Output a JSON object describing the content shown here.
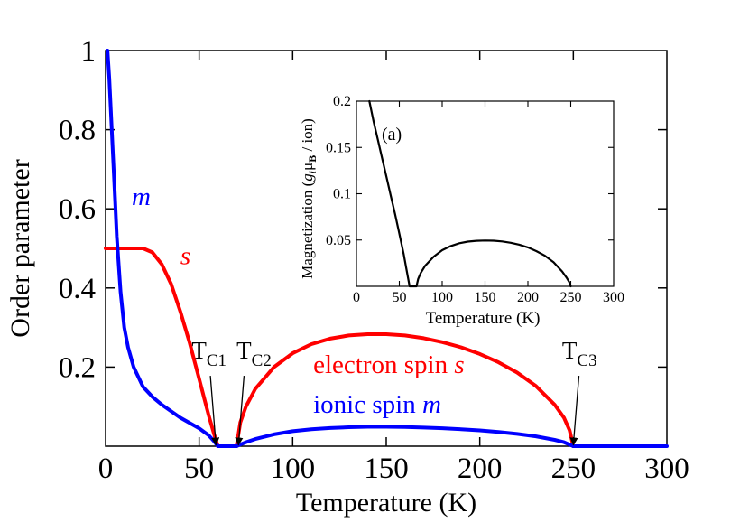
{
  "chart_data": [
    {
      "type": "line",
      "xlabel": "Temperature (K)",
      "ylabel": "Order parameter",
      "xlim": [
        0,
        300
      ],
      "ylim": [
        0,
        1
      ],
      "xticks": [
        0,
        50,
        100,
        150,
        200,
        250,
        300
      ],
      "xtick_labels": [
        "0",
        "50",
        "100",
        "150",
        "200",
        "250",
        "300"
      ],
      "yticks": [
        0.2,
        0.4,
        0.6,
        0.8,
        1
      ],
      "ytick_labels": [
        "0.2",
        "0.4",
        "0.6",
        "0.8",
        "1"
      ],
      "grid": false,
      "series": [
        {
          "name": "s",
          "color": "#ff0000",
          "x": [
            0,
            10,
            20,
            25,
            30,
            35,
            40,
            45,
            50,
            55,
            58,
            60,
            70,
            72,
            75,
            80,
            90,
            100,
            110,
            120,
            130,
            140,
            150,
            160,
            170,
            180,
            190,
            200,
            210,
            220,
            230,
            240,
            245,
            248,
            250
          ],
          "y": [
            0.5,
            0.5,
            0.5,
            0.49,
            0.46,
            0.41,
            0.34,
            0.26,
            0.17,
            0.08,
            0.03,
            0.0,
            0.0,
            0.06,
            0.1,
            0.145,
            0.2,
            0.235,
            0.258,
            0.272,
            0.28,
            0.283,
            0.283,
            0.28,
            0.273,
            0.263,
            0.25,
            0.233,
            0.212,
            0.186,
            0.152,
            0.105,
            0.072,
            0.04,
            0.0
          ]
        },
        {
          "name": "m",
          "color": "#0000ff",
          "x": [
            1,
            2,
            3,
            4,
            5,
            6,
            8,
            10,
            12,
            15,
            20,
            25,
            30,
            40,
            50,
            55,
            58,
            60,
            70,
            72,
            75,
            80,
            90,
            100,
            110,
            120,
            130,
            140,
            150,
            160,
            170,
            180,
            190,
            200,
            210,
            220,
            230,
            240,
            245,
            250,
            300
          ],
          "y": [
            1.0,
            0.93,
            0.83,
            0.73,
            0.63,
            0.53,
            0.39,
            0.3,
            0.25,
            0.2,
            0.15,
            0.125,
            0.105,
            0.072,
            0.045,
            0.028,
            0.012,
            0.0,
            0.0,
            0.004,
            0.01,
            0.018,
            0.03,
            0.038,
            0.043,
            0.046,
            0.048,
            0.049,
            0.049,
            0.0485,
            0.047,
            0.0455,
            0.043,
            0.04,
            0.036,
            0.031,
            0.025,
            0.016,
            0.01,
            0.0,
            0.0
          ]
        }
      ],
      "annotations": [
        {
          "id": "label_m",
          "text": "m",
          "color": "#0000ff",
          "x": 14,
          "y": 0.61
        },
        {
          "id": "label_s",
          "text": "s",
          "color": "#ff0000",
          "x": 40,
          "y": 0.46
        },
        {
          "id": "label_electron",
          "text": "electron spin",
          "italic_suffix": "s",
          "color": "#ff0000",
          "x": 111,
          "y": 0.185
        },
        {
          "id": "label_ionic",
          "text": "ionic spin",
          "italic_suffix": "m",
          "color": "#0000ff",
          "x": 111,
          "y": 0.085
        }
      ],
      "critical_points": [
        {
          "id": "tc1",
          "label": "T",
          "subscript": "C1",
          "text_x": 46,
          "text_y": 0.222,
          "arrow_from": [
            56,
            0.178
          ],
          "arrow_to": [
            59,
            0.003
          ]
        },
        {
          "id": "tc2",
          "label": "T",
          "subscript": "C2",
          "text_x": 70,
          "text_y": 0.222,
          "arrow_from": [
            74,
            0.178
          ],
          "arrow_to": [
            71,
            0.003
          ]
        },
        {
          "id": "tc3",
          "label": "T",
          "subscript": "C3",
          "text_x": 244,
          "text_y": 0.222,
          "arrow_from": [
            253,
            0.178
          ],
          "arrow_to": [
            250,
            0.003
          ]
        }
      ]
    },
    {
      "type": "line",
      "panel_label": "(a)",
      "xlabel": "Temperature (K)",
      "ylabel_parts": [
        "Magnetization (",
        "g",
        "i",
        "μ",
        "B",
        " / ion)"
      ],
      "xlim": [
        0,
        300
      ],
      "ylim": [
        0,
        0.2
      ],
      "xticks": [
        0,
        50,
        100,
        150,
        200,
        250,
        300
      ],
      "xtick_labels": [
        "0",
        "50",
        "100",
        "150",
        "200",
        "250",
        "300"
      ],
      "yticks": [
        0.05,
        0.1,
        0.15,
        0.2
      ],
      "ytick_labels": [
        "0.05",
        "0.1",
        "0.15",
        "0.2"
      ],
      "grid": false,
      "series": [
        {
          "name": "magnetization",
          "color": "#000000",
          "x": [
            15,
            20,
            25,
            30,
            35,
            40,
            45,
            50,
            55,
            58,
            60,
            62,
            70,
            72,
            75,
            80,
            90,
            100,
            110,
            120,
            130,
            140,
            150,
            160,
            170,
            180,
            190,
            200,
            210,
            220,
            230,
            240,
            245,
            248,
            250
          ],
          "y": [
            0.2,
            0.178,
            0.158,
            0.138,
            0.118,
            0.098,
            0.078,
            0.057,
            0.035,
            0.02,
            0.01,
            0.0,
            0.0,
            0.008,
            0.0145,
            0.022,
            0.032,
            0.039,
            0.0435,
            0.0465,
            0.0483,
            0.0492,
            0.0495,
            0.0493,
            0.0485,
            0.047,
            0.045,
            0.042,
            0.038,
            0.033,
            0.026,
            0.016,
            0.0095,
            0.005,
            0.0
          ]
        }
      ]
    }
  ]
}
